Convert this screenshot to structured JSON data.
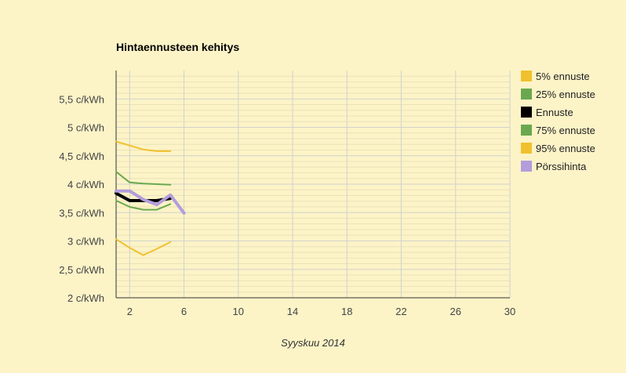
{
  "colors": {
    "background": "#fcf3c7",
    "grid_major": "#d2d2cc",
    "grid_minor": "#ece2b8",
    "axis": "#333333",
    "text": "#444444"
  },
  "chart_data": {
    "type": "line",
    "title": "Hintaennusteen kehitys",
    "xlabel": "Syyskuu 2014",
    "ylabel": "",
    "xlim": [
      1,
      30
    ],
    "ylim": [
      2,
      6
    ],
    "x_ticks": [
      2,
      6,
      10,
      14,
      18,
      22,
      26,
      30
    ],
    "y_ticks": [
      2,
      2.5,
      3,
      3.5,
      4,
      4.5,
      5,
      5.5
    ],
    "y_tick_labels": [
      "2 c/kWh",
      "2,5 c/kWh",
      "3 c/kWh",
      "3,5 c/kWh",
      "4 c/kWh",
      "4,5 c/kWh",
      "5 c/kWh",
      "5,5 c/kWh"
    ],
    "grid": true,
    "legend_position": "right",
    "series": [
      {
        "name": "5% ennuste",
        "color": "#f0c12e",
        "width": 2,
        "x": [
          1,
          2,
          3,
          4,
          5
        ],
        "values": [
          3.03,
          2.88,
          2.75,
          2.86,
          2.98
        ]
      },
      {
        "name": "25% ennuste",
        "color": "#6aa84f",
        "width": 2,
        "x": [
          1,
          2,
          3,
          4,
          5
        ],
        "values": [
          3.71,
          3.6,
          3.55,
          3.55,
          3.65
        ]
      },
      {
        "name": "Ennuste",
        "color": "#000000",
        "width": 4,
        "x": [
          1,
          2,
          3,
          4,
          5
        ],
        "values": [
          3.84,
          3.71,
          3.71,
          3.71,
          3.75
        ]
      },
      {
        "name": "75% ennuste",
        "color": "#6aa84f",
        "width": 2,
        "x": [
          1,
          2,
          3,
          4,
          5
        ],
        "values": [
          4.22,
          4.03,
          4.01,
          4.0,
          3.99
        ]
      },
      {
        "name": "95% ennuste",
        "color": "#f0c12e",
        "width": 2,
        "x": [
          1,
          2,
          3,
          4,
          5
        ],
        "values": [
          4.75,
          4.68,
          4.61,
          4.58,
          4.58
        ]
      },
      {
        "name": "Pörssihinta",
        "color": "#b39ddb",
        "width": 4,
        "x": [
          1,
          2,
          3,
          4,
          5,
          6
        ],
        "values": [
          3.88,
          3.88,
          3.73,
          3.64,
          3.81,
          3.49
        ]
      }
    ]
  }
}
